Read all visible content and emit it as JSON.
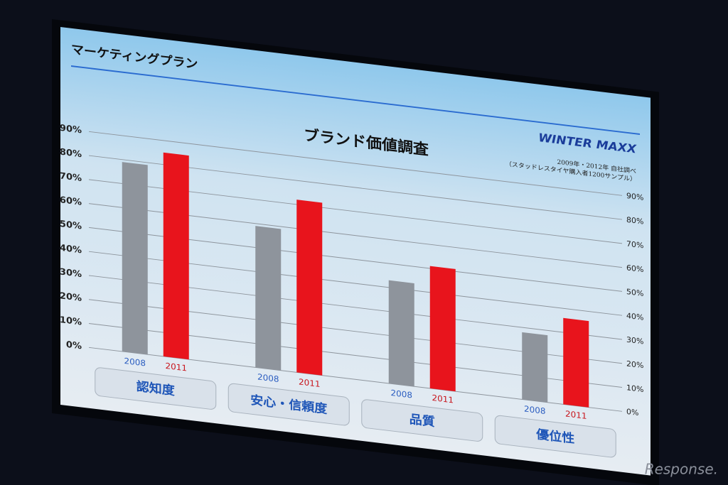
{
  "chart_data": {
    "type": "bar",
    "header": "マーケティングプラン",
    "brand": "WINTER MAXX",
    "title": "ブランド価値調査",
    "notes": [
      "2009年・2012年 自社調べ",
      "（スタッドレスタイヤ購入者1200サンプル）"
    ],
    "categories": [
      "認知度",
      "安心・信頼度",
      "品質",
      "優位性"
    ],
    "series": [
      {
        "name": "2008",
        "color": "#8e949c",
        "values": [
          79,
          59,
          43,
          28
        ]
      },
      {
        "name": "2011",
        "color": "#e8141c",
        "values": [
          85,
          72,
          51,
          36
        ]
      }
    ],
    "ylim": [
      0,
      90
    ],
    "yticks": [
      {
        "value": 0,
        "label": "0%"
      },
      {
        "value": 10,
        "label": "10%"
      },
      {
        "value": 20,
        "label": "20%"
      },
      {
        "value": 30,
        "label": "30%"
      },
      {
        "value": 40,
        "label": "40%"
      },
      {
        "value": 50,
        "label": "50%"
      },
      {
        "value": 60,
        "label": "60%"
      },
      {
        "value": 70,
        "label": "70%"
      },
      {
        "value": 80,
        "label": "80%"
      },
      {
        "value": 90,
        "label": "90%"
      }
    ],
    "y2lim": [
      0,
      90
    ],
    "y2ticks": [
      {
        "value": 0,
        "label": "0%"
      },
      {
        "value": 10,
        "label": "10%"
      },
      {
        "value": 20,
        "label": "20%"
      },
      {
        "value": 30,
        "label": "30%"
      },
      {
        "value": 40,
        "label": "40%"
      },
      {
        "value": 50,
        "label": "50%"
      },
      {
        "value": 60,
        "label": "60%"
      },
      {
        "value": 70,
        "label": "70%"
      },
      {
        "value": 80,
        "label": "80%"
      },
      {
        "value": 90,
        "label": "90%"
      }
    ],
    "grid": true,
    "watermark": "Response."
  }
}
